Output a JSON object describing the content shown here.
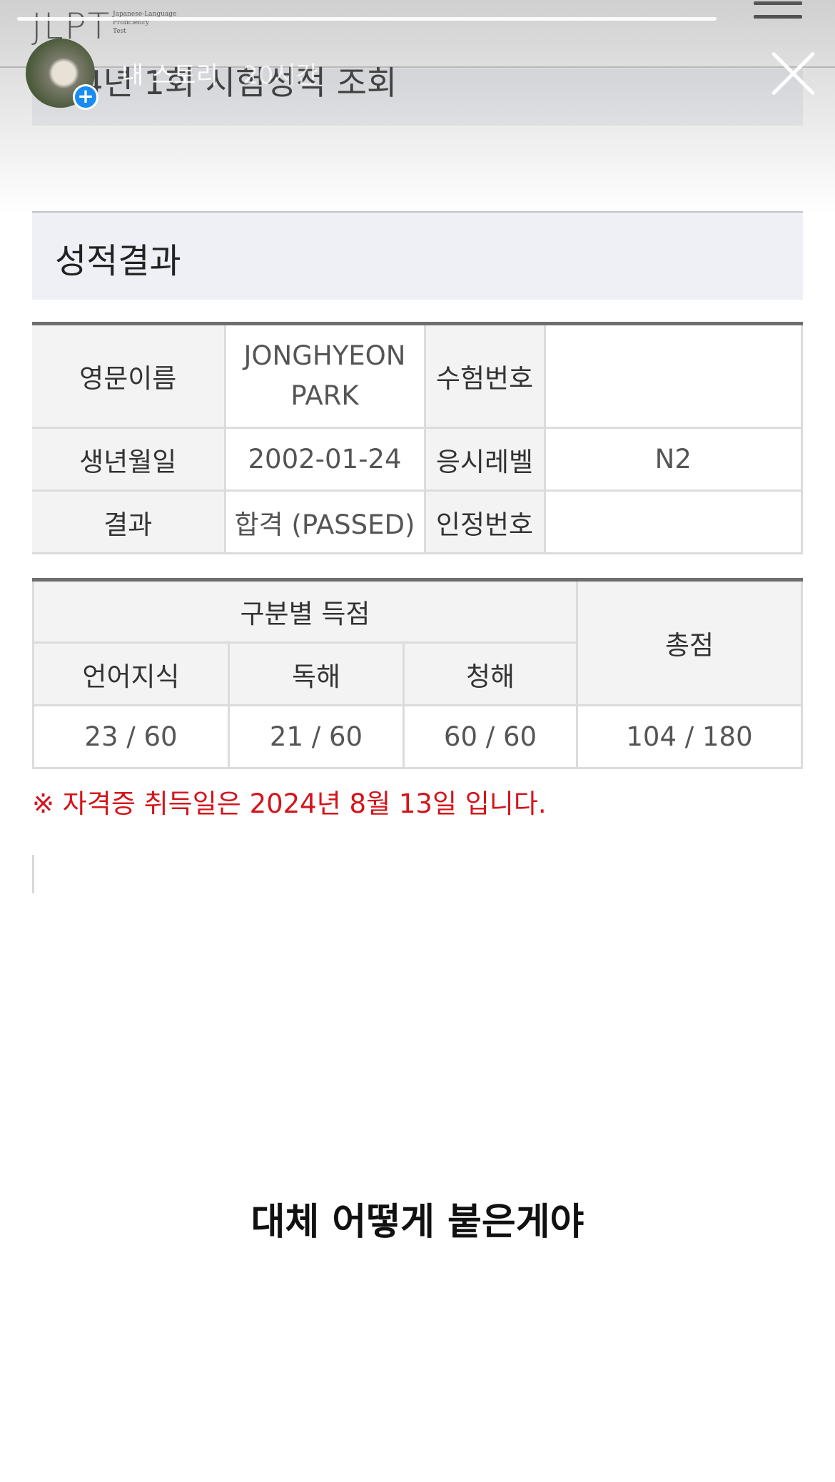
{
  "header": {
    "logo": "JLPT",
    "logo_sub": "Japanese-Language\nProficiency\nTest"
  },
  "page": {
    "title": "24년 1회 시험성적 조회"
  },
  "section": {
    "title": "성적결과"
  },
  "info_table": {
    "name_label": "영문이름",
    "name_value": "JONGHYEON\nPARK",
    "exam_no_label": "수험번호",
    "exam_no_value": "",
    "birth_label": "생년월일",
    "birth_value": "2002-01-24",
    "level_label": "응시레벨",
    "level_value": "N2",
    "result_label": "결과",
    "result_value": "합격 (PASSED)",
    "cert_no_label": "인정번호",
    "cert_no_value": ""
  },
  "score_table": {
    "group_header": "구분별 득점",
    "total_header": "총점",
    "columns": [
      "언어지식",
      "독해",
      "청해"
    ],
    "scores": [
      "23 / 60",
      "21 / 60",
      "60 / 60"
    ],
    "total": "104 / 180"
  },
  "notice": "※ 자격증 취득일은 2024년 8월 13일 입니다.",
  "story": {
    "username": "내 스토리",
    "time": "20시간",
    "caption": "대체 어떻게 붙은게야"
  }
}
